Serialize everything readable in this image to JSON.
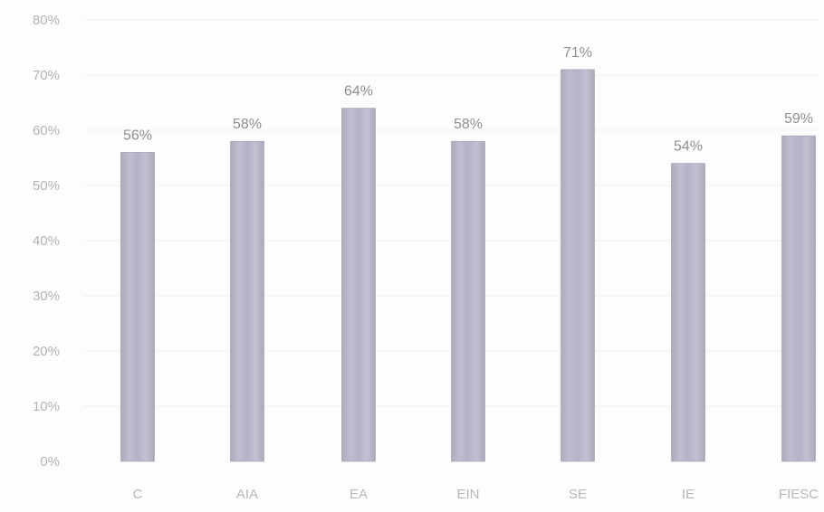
{
  "chart_data": {
    "type": "bar",
    "categories": [
      "C",
      "AIA",
      "EA",
      "EIN",
      "SE",
      "IE",
      "FIESC"
    ],
    "values": [
      56,
      58,
      64,
      58,
      71,
      54,
      59
    ],
    "value_labels": [
      "56%",
      "58%",
      "64%",
      "58%",
      "71%",
      "54%",
      "59%"
    ],
    "yticks": [
      "0%",
      "10%",
      "20%",
      "30%",
      "40%",
      "50%",
      "60%",
      "70%",
      "80%"
    ],
    "ylim": [
      0,
      80
    ],
    "grid": true,
    "legend": "none",
    "bar_color": "#b9b4c8"
  }
}
